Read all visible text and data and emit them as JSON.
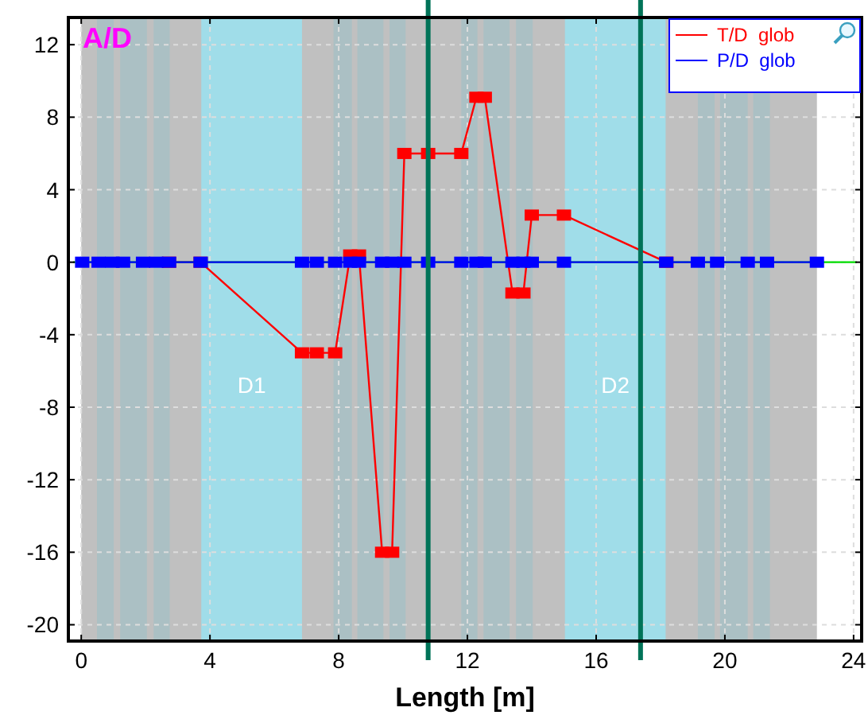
{
  "chart_data": {
    "type": "line",
    "title": "A/D",
    "xlabel": "Length [m]",
    "xlim": [
      -0.4,
      24.25
    ],
    "ylim": [
      -20.9,
      13.5
    ],
    "xticks": [
      0,
      4,
      8,
      12,
      16,
      20,
      24
    ],
    "yticks": [
      -20,
      -16,
      -12,
      -8,
      -4,
      0,
      4,
      8,
      12
    ],
    "grid": true,
    "legend": "top right",
    "marker": "square",
    "series": [
      {
        "name": "T/D  glob",
        "color": "#ff0000",
        "x": [
          2.73,
          3.71,
          6.86,
          7.32,
          7.89,
          8.36,
          8.63,
          9.35,
          9.66,
          10.04,
          10.78,
          11.81,
          12.28,
          12.54,
          13.4,
          13.74,
          14.0,
          15.0,
          18.18
        ],
        "values": [
          0,
          0,
          -5,
          -5,
          -5,
          0.4,
          0.4,
          -16,
          -16,
          6,
          6,
          6,
          9.1,
          9.1,
          -1.7,
          -1.7,
          2.6,
          2.6,
          0
        ]
      },
      {
        "color": "#00dd00",
        "marker": "none",
        "x": [
          -0.25,
          24.1
        ],
        "values": [
          0,
          0
        ]
      },
      {
        "name": "P/D  glob",
        "color": "#0000ff",
        "x": [
          0.03,
          0.54,
          0.97,
          1.3,
          1.92,
          2.33,
          2.73,
          3.71,
          6.86,
          7.32,
          7.89,
          8.36,
          8.63,
          9.35,
          9.66,
          10.04,
          10.78,
          11.81,
          12.28,
          12.54,
          13.4,
          13.74,
          14.0,
          15.0,
          18.18,
          19.16,
          19.76,
          20.71,
          21.31,
          22.86
        ],
        "values": [
          0,
          0,
          0,
          0,
          0,
          0,
          0,
          0,
          0,
          0,
          0,
          0,
          0,
          0,
          0,
          0,
          0,
          0,
          0,
          0,
          0,
          0,
          0,
          0,
          0,
          0,
          0,
          0,
          0,
          0
        ]
      }
    ],
    "bands": [
      {
        "axis": "x",
        "from": 0,
        "to": 22.86,
        "color": "#c0c0c0"
      },
      {
        "axis": "x",
        "from": 0.49,
        "to": 1.01,
        "color": "#abc0c4"
      },
      {
        "axis": "x",
        "from": 1.21,
        "to": 2.04,
        "color": "#abc0c4"
      },
      {
        "axis": "x",
        "from": 2.25,
        "to": 2.75,
        "color": "#abc0c4"
      },
      {
        "axis": "x",
        "from": 7.84,
        "to": 8.41,
        "color": "#abc0c4"
      },
      {
        "axis": "x",
        "from": 8.58,
        "to": 9.39,
        "color": "#abc0c4"
      },
      {
        "axis": "x",
        "from": 9.58,
        "to": 10.08,
        "color": "#abc0c4"
      },
      {
        "axis": "x",
        "from": 11.81,
        "to": 12.31,
        "color": "#abc0c4"
      },
      {
        "axis": "x",
        "from": 12.5,
        "to": 13.31,
        "color": "#abc0c4"
      },
      {
        "axis": "x",
        "from": 13.51,
        "to": 14.03,
        "color": "#abc0c4"
      },
      {
        "axis": "x",
        "from": 19.16,
        "to": 19.68,
        "color": "#abc0c4"
      },
      {
        "axis": "x",
        "from": 19.85,
        "to": 20.71,
        "color": "#abc0c4"
      },
      {
        "axis": "x",
        "from": 20.88,
        "to": 21.4,
        "color": "#abc0c4"
      },
      {
        "axis": "x",
        "from": 3.73,
        "to": 6.86,
        "label": "D1",
        "color": "#a0dde9"
      },
      {
        "axis": "x",
        "from": 15.03,
        "to": 18.16,
        "label": "D2",
        "color": "#a0dde9"
      }
    ],
    "ref_lines": [
      {
        "axis": "x",
        "value": 10.78,
        "color": "#007358"
      },
      {
        "axis": "x",
        "value": 17.38,
        "color": "#007358"
      }
    ]
  }
}
